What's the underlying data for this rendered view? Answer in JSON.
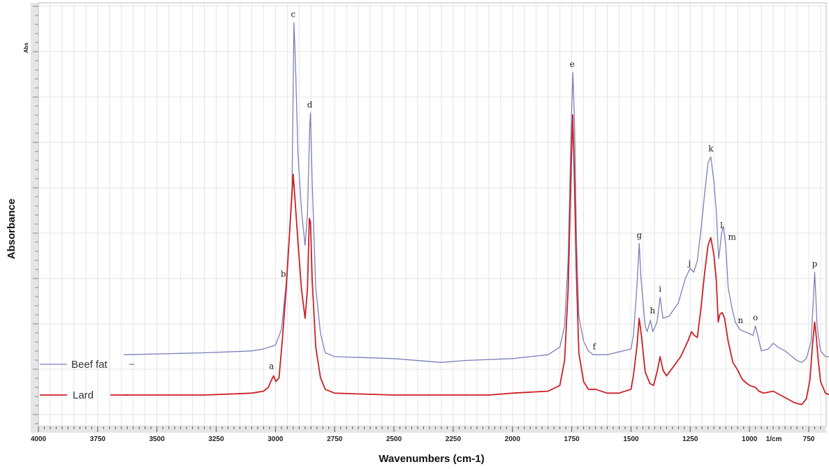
{
  "chart_data": {
    "type": "line",
    "xlabel": "Wavenumbers (cm-1)",
    "ylabel": "Absorbance",
    "axis_unit_label": "Abs",
    "x_unit_tick": "1/cm",
    "xlim": [
      4000,
      650
    ],
    "x_reversed": true,
    "grid": true,
    "x_ticks": [
      4000,
      3750,
      3500,
      3250,
      3000,
      2750,
      2500,
      2250,
      2000,
      1750,
      1500,
      1250,
      1000,
      750
    ],
    "legend_placement": "bottom-left",
    "series": [
      {
        "name": "Beef fat",
        "color": "#7b7fb8",
        "points": [
          [
            3640,
            0.05
          ],
          [
            3300,
            0.06
          ],
          [
            3100,
            0.07
          ],
          [
            3050,
            0.08
          ],
          [
            3000,
            0.1
          ],
          [
            2975,
            0.18
          ],
          [
            2955,
            0.42
          ],
          [
            2940,
            0.7
          ],
          [
            2930,
            0.92
          ],
          [
            2922,
            1.78
          ],
          [
            2915,
            1.55
          ],
          [
            2905,
            1.1
          ],
          [
            2890,
            0.8
          ],
          [
            2875,
            0.62
          ],
          [
            2865,
            0.78
          ],
          [
            2855,
            1.25
          ],
          [
            2852,
            1.31
          ],
          [
            2845,
            0.95
          ],
          [
            2830,
            0.4
          ],
          [
            2810,
            0.16
          ],
          [
            2790,
            0.06
          ],
          [
            2750,
            0.04
          ],
          [
            2500,
            0.03
          ],
          [
            2300,
            0.01
          ],
          [
            2200,
            0.02
          ],
          [
            2000,
            0.03
          ],
          [
            1850,
            0.05
          ],
          [
            1800,
            0.09
          ],
          [
            1780,
            0.2
          ],
          [
            1765,
            0.55
          ],
          [
            1752,
            1.25
          ],
          [
            1745,
            1.52
          ],
          [
            1738,
            1.25
          ],
          [
            1730,
            0.65
          ],
          [
            1720,
            0.25
          ],
          [
            1700,
            0.12
          ],
          [
            1680,
            0.07
          ],
          [
            1660,
            0.05
          ],
          [
            1600,
            0.05
          ],
          [
            1500,
            0.08
          ],
          [
            1490,
            0.15
          ],
          [
            1475,
            0.4
          ],
          [
            1465,
            0.63
          ],
          [
            1458,
            0.45
          ],
          [
            1440,
            0.2
          ],
          [
            1432,
            0.17
          ],
          [
            1418,
            0.23
          ],
          [
            1408,
            0.17
          ],
          [
            1390,
            0.22
          ],
          [
            1377,
            0.35
          ],
          [
            1365,
            0.24
          ],
          [
            1340,
            0.25
          ],
          [
            1300,
            0.32
          ],
          [
            1270,
            0.45
          ],
          [
            1250,
            0.5
          ],
          [
            1235,
            0.48
          ],
          [
            1220,
            0.54
          ],
          [
            1205,
            0.7
          ],
          [
            1190,
            0.88
          ],
          [
            1175,
            1.05
          ],
          [
            1163,
            1.08
          ],
          [
            1150,
            0.95
          ],
          [
            1140,
            0.8
          ],
          [
            1130,
            0.55
          ],
          [
            1125,
            0.6
          ],
          [
            1118,
            0.68
          ],
          [
            1110,
            0.72
          ],
          [
            1100,
            0.62
          ],
          [
            1090,
            0.4
          ],
          [
            1075,
            0.3
          ],
          [
            1060,
            0.22
          ],
          [
            1040,
            0.18
          ],
          [
            1020,
            0.17
          ],
          [
            1000,
            0.16
          ],
          [
            985,
            0.15
          ],
          [
            975,
            0.2
          ],
          [
            965,
            0.15
          ],
          [
            950,
            0.07
          ],
          [
            920,
            0.08
          ],
          [
            900,
            0.11
          ],
          [
            880,
            0.09
          ],
          [
            850,
            0.07
          ],
          [
            820,
            0.04
          ],
          [
            800,
            0.02
          ],
          [
            780,
            0.01
          ],
          [
            760,
            0.03
          ],
          [
            740,
            0.12
          ],
          [
            730,
            0.35
          ],
          [
            725,
            0.48
          ],
          [
            720,
            0.35
          ],
          [
            715,
            0.2
          ],
          [
            700,
            0.07
          ],
          [
            680,
            0.04
          ],
          [
            660,
            0.04
          ]
        ]
      },
      {
        "name": "Lard",
        "color": "#cc1f24",
        "points": [
          [
            3640,
            0.0
          ],
          [
            3300,
            0.0
          ],
          [
            3100,
            0.01
          ],
          [
            3050,
            0.02
          ],
          [
            3030,
            0.04
          ],
          [
            3020,
            0.07
          ],
          [
            3008,
            0.1
          ],
          [
            2998,
            0.07
          ],
          [
            2985,
            0.09
          ],
          [
            2970,
            0.3
          ],
          [
            2955,
            0.55
          ],
          [
            2940,
            0.85
          ],
          [
            2925,
            1.15
          ],
          [
            2918,
            1.03
          ],
          [
            2905,
            0.8
          ],
          [
            2890,
            0.55
          ],
          [
            2875,
            0.4
          ],
          [
            2865,
            0.55
          ],
          [
            2857,
            0.92
          ],
          [
            2852,
            0.9
          ],
          [
            2845,
            0.6
          ],
          [
            2830,
            0.25
          ],
          [
            2810,
            0.09
          ],
          [
            2790,
            0.03
          ],
          [
            2750,
            0.01
          ],
          [
            2500,
            0.0
          ],
          [
            2300,
            0.0
          ],
          [
            2100,
            0.0
          ],
          [
            2000,
            0.01
          ],
          [
            1850,
            0.02
          ],
          [
            1800,
            0.05
          ],
          [
            1780,
            0.18
          ],
          [
            1765,
            0.55
          ],
          [
            1752,
            1.2
          ],
          [
            1746,
            1.46
          ],
          [
            1740,
            1.2
          ],
          [
            1730,
            0.62
          ],
          [
            1720,
            0.22
          ],
          [
            1700,
            0.07
          ],
          [
            1680,
            0.03
          ],
          [
            1650,
            0.03
          ],
          [
            1600,
            0.01
          ],
          [
            1550,
            0.01
          ],
          [
            1500,
            0.03
          ],
          [
            1490,
            0.1
          ],
          [
            1475,
            0.25
          ],
          [
            1465,
            0.4
          ],
          [
            1455,
            0.3
          ],
          [
            1440,
            0.12
          ],
          [
            1420,
            0.06
          ],
          [
            1405,
            0.05
          ],
          [
            1390,
            0.12
          ],
          [
            1377,
            0.2
          ],
          [
            1365,
            0.13
          ],
          [
            1350,
            0.1
          ],
          [
            1320,
            0.15
          ],
          [
            1290,
            0.2
          ],
          [
            1260,
            0.28
          ],
          [
            1245,
            0.33
          ],
          [
            1232,
            0.31
          ],
          [
            1220,
            0.3
          ],
          [
            1205,
            0.45
          ],
          [
            1190,
            0.63
          ],
          [
            1175,
            0.78
          ],
          [
            1163,
            0.82
          ],
          [
            1150,
            0.73
          ],
          [
            1140,
            0.6
          ],
          [
            1132,
            0.38
          ],
          [
            1125,
            0.42
          ],
          [
            1115,
            0.43
          ],
          [
            1105,
            0.4
          ],
          [
            1090,
            0.28
          ],
          [
            1070,
            0.17
          ],
          [
            1050,
            0.13
          ],
          [
            1030,
            0.08
          ],
          [
            1000,
            0.05
          ],
          [
            975,
            0.04
          ],
          [
            960,
            0.02
          ],
          [
            940,
            0.01
          ],
          [
            900,
            0.02
          ],
          [
            870,
            0.0
          ],
          [
            840,
            -0.02
          ],
          [
            810,
            -0.04
          ],
          [
            780,
            -0.05
          ],
          [
            760,
            -0.02
          ],
          [
            745,
            0.08
          ],
          [
            735,
            0.25
          ],
          [
            725,
            0.38
          ],
          [
            718,
            0.3
          ],
          [
            710,
            0.18
          ],
          [
            700,
            0.07
          ],
          [
            680,
            0.01
          ],
          [
            660,
            0.0
          ]
        ]
      }
    ],
    "peak_labels": [
      {
        "label": "a",
        "x": 3008
      },
      {
        "label": "b",
        "x": 2955
      },
      {
        "label": "c",
        "x": 2922
      },
      {
        "label": "d",
        "x": 2852
      },
      {
        "label": "e",
        "x": 1745
      },
      {
        "label": "f",
        "x": 1655
      },
      {
        "label": "g",
        "x": 1465
      },
      {
        "label": "h",
        "x": 1418
      },
      {
        "label": "i",
        "x": 1377
      },
      {
        "label": "j",
        "x": 1238
      },
      {
        "label": "k",
        "x": 1163
      },
      {
        "label": "l",
        "x": 1118
      },
      {
        "label": "m",
        "x": 1100
      },
      {
        "label": "n",
        "x": 1038
      },
      {
        "label": "o",
        "x": 975
      },
      {
        "label": "p",
        "x": 725
      }
    ]
  }
}
